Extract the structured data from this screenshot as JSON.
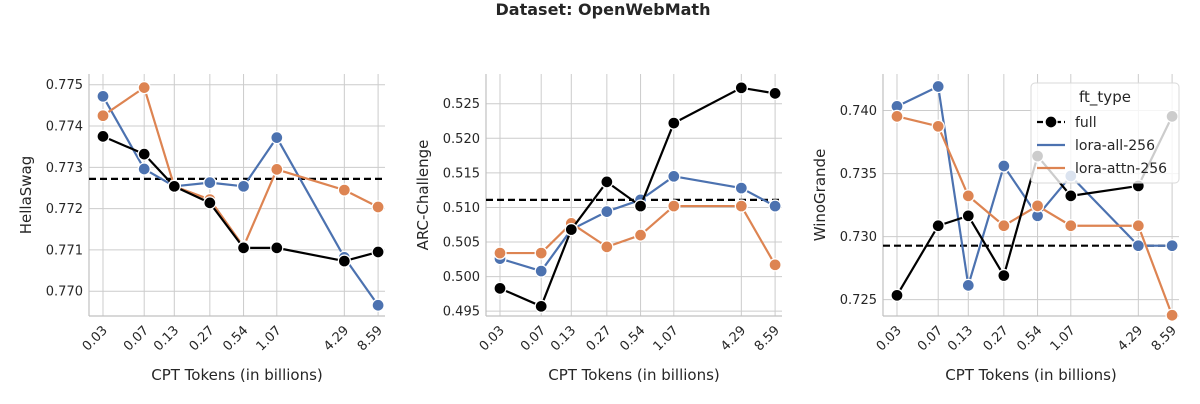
{
  "suptitle": "Dataset: OpenWebMath",
  "colors": {
    "full": "#000000",
    "lora-all-256": "#4C72B0",
    "lora-attn-256": "#DD8452",
    "grid": "#cccccc"
  },
  "chart_data": [
    {
      "type": "line",
      "xlabel": "CPT Tokens (in billions)",
      "ylabel": "HellaSwag",
      "x": [
        0.03,
        0.07,
        0.13,
        0.27,
        0.54,
        1.07,
        4.29,
        8.59
      ],
      "x_tick_labels": [
        "0.03",
        "0.07",
        "0.13",
        "0.27",
        "0.54",
        "1.07",
        "4.29",
        "8.59"
      ],
      "x_scale": "log",
      "xlim": [
        0.0225,
        9.9
      ],
      "ylim": [
        0.7694,
        0.77526
      ],
      "y_ticks": [
        0.77,
        0.771,
        0.772,
        0.773,
        0.774,
        0.775
      ],
      "y_tick_labels": [
        "0.770",
        "0.771",
        "0.772",
        "0.773",
        "0.774",
        "0.775"
      ],
      "baseline": 0.77272,
      "grid": true,
      "series": [
        {
          "name": "lora-all-256",
          "color": "#4C72B0",
          "values": [
            0.77472,
            0.77296,
            0.77254,
            0.77263,
            0.77254,
            0.77372,
            0.77082,
            0.76966
          ]
        },
        {
          "name": "lora-attn-256",
          "color": "#DD8452",
          "values": [
            0.77425,
            0.77493,
            0.77254,
            0.77222,
            0.77108,
            0.77295,
            0.77245,
            0.77204
          ]
        },
        {
          "name": "full",
          "color": "#000000",
          "values": [
            0.77375,
            0.77332,
            0.77254,
            0.77214,
            0.77105,
            0.77105,
            0.77073,
            0.77095
          ]
        }
      ]
    },
    {
      "type": "line",
      "xlabel": "CPT Tokens (in billions)",
      "ylabel": "ARC-Challenge",
      "x": [
        0.03,
        0.07,
        0.13,
        0.27,
        0.54,
        1.07,
        4.29,
        8.59
      ],
      "x_tick_labels": [
        "0.03",
        "0.07",
        "0.13",
        "0.27",
        "0.54",
        "1.07",
        "4.29",
        "8.59"
      ],
      "x_scale": "log",
      "xlim": [
        0.0225,
        9.9
      ],
      "ylim": [
        0.4943,
        0.5293
      ],
      "y_ticks": [
        0.495,
        0.5,
        0.505,
        0.51,
        0.515,
        0.52,
        0.525
      ],
      "y_tick_labels": [
        "0.495",
        "0.500",
        "0.505",
        "0.510",
        "0.515",
        "0.520",
        "0.525"
      ],
      "baseline": 0.5111,
      "grid": true,
      "series": [
        {
          "name": "lora-all-256",
          "color": "#4C72B0",
          "values": [
            0.5026,
            0.5008,
            0.5068,
            0.5094,
            0.5111,
            0.5145,
            0.5128,
            0.5102
          ]
        },
        {
          "name": "lora-attn-256",
          "color": "#DD8452",
          "values": [
            0.5034,
            0.5034,
            0.5077,
            0.5043,
            0.506,
            0.5102,
            0.5102,
            0.5017
          ]
        },
        {
          "name": "full",
          "color": "#000000",
          "values": [
            0.4983,
            0.4957,
            0.5068,
            0.5137,
            0.5102,
            0.5222,
            0.5273,
            0.5265
          ]
        }
      ]
    },
    {
      "type": "line",
      "xlabel": "CPT Tokens (in billions)",
      "ylabel": "WinoGrande",
      "x": [
        0.03,
        0.07,
        0.13,
        0.27,
        0.54,
        1.07,
        4.29,
        8.59
      ],
      "x_tick_labels": [
        "0.03",
        "0.07",
        "0.13",
        "0.27",
        "0.54",
        "1.07",
        "4.29",
        "8.59"
      ],
      "x_scale": "log",
      "xlim": [
        0.0225,
        9.9
      ],
      "ylim": [
        0.7237,
        0.7429
      ],
      "y_ticks": [
        0.725,
        0.73,
        0.735,
        0.74
      ],
      "y_tick_labels": [
        "0.725",
        "0.730",
        "0.735",
        "0.740"
      ],
      "baseline": 0.72928,
      "grid": true,
      "series": [
        {
          "name": "lora-all-256",
          "color": "#4C72B0",
          "values": [
            0.74033,
            0.74191,
            0.72613,
            0.7356,
            0.73165,
            0.73481,
            0.72928,
            0.72928
          ]
        },
        {
          "name": "lora-attn-256",
          "color": "#DD8452",
          "values": [
            0.73954,
            0.73875,
            0.73323,
            0.73086,
            0.73244,
            0.73086,
            0.73086,
            0.72376
          ]
        },
        {
          "name": "full",
          "color": "#000000",
          "values": [
            0.72534,
            0.73086,
            0.73165,
            0.72691,
            0.73639,
            0.73323,
            0.73402,
            0.73954
          ]
        }
      ]
    }
  ],
  "legend": {
    "title": "ft_type",
    "placement": "upper right of third panel",
    "entries": [
      {
        "name": "full",
        "color": "#000000",
        "style": "dashed-marker"
      },
      {
        "name": "lora-all-256",
        "color": "#4C72B0",
        "style": "solid"
      },
      {
        "name": "lora-attn-256",
        "color": "#DD8452",
        "style": "solid"
      }
    ]
  }
}
